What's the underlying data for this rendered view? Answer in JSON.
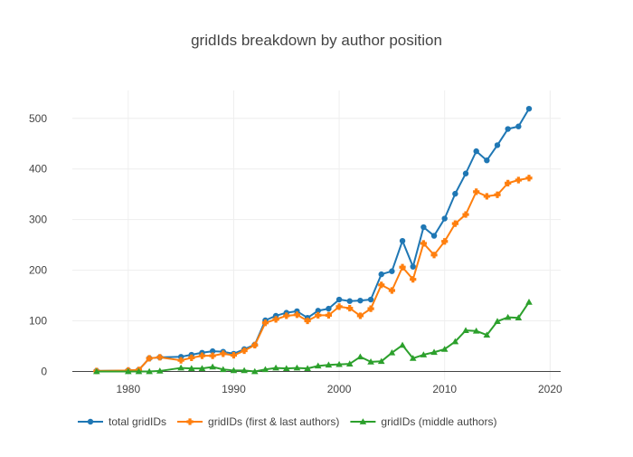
{
  "chart_data": {
    "type": "line",
    "title": "gridIds breakdown by author position",
    "xlabel": "",
    "ylabel": "",
    "xlim": [
      1974.7,
      2021
    ],
    "ylim": [
      -17,
      555
    ],
    "xticks": [
      1980,
      1990,
      2000,
      2010,
      2020
    ],
    "yticks": [
      0,
      100,
      200,
      300,
      400,
      500
    ],
    "grid": true,
    "legend_position": "bottom",
    "series": [
      {
        "name": "total gridIDs",
        "color": "#1f77b4",
        "marker": "circle",
        "x": [
          1977,
          1980,
          1981,
          1982,
          1983,
          1985,
          1986,
          1987,
          1988,
          1989,
          1990,
          1991,
          1992,
          1993,
          1994,
          1995,
          1996,
          1997,
          1998,
          1999,
          2000,
          2001,
          2002,
          2003,
          2004,
          2005,
          2006,
          2007,
          2008,
          2009,
          2010,
          2011,
          2012,
          2013,
          2014,
          2015,
          2016,
          2017,
          2018
        ],
        "y": [
          1,
          2,
          3,
          26,
          28,
          29,
          33,
          37,
          40,
          39,
          35,
          44,
          53,
          101,
          110,
          116,
          119,
          106,
          120,
          124,
          142,
          139,
          140,
          142,
          192,
          198,
          258,
          207,
          285,
          268,
          302,
          351,
          391,
          435,
          417,
          447,
          479,
          484,
          519
        ]
      },
      {
        "name": "gridIDs (first & last authors)",
        "color": "#ff7f0e",
        "marker": "cross",
        "x": [
          1977,
          1980,
          1981,
          1982,
          1983,
          1985,
          1986,
          1987,
          1988,
          1989,
          1990,
          1991,
          1992,
          1993,
          1994,
          1995,
          1996,
          1997,
          1998,
          1999,
          2000,
          2001,
          2002,
          2003,
          2004,
          2005,
          2006,
          2007,
          2008,
          2009,
          2010,
          2011,
          2012,
          2013,
          2014,
          2015,
          2016,
          2017,
          2018
        ],
        "y": [
          1,
          2,
          3,
          26,
          28,
          22,
          27,
          31,
          31,
          35,
          32,
          41,
          52,
          96,
          103,
          110,
          112,
          100,
          111,
          111,
          128,
          125,
          110,
          124,
          171,
          160,
          206,
          182,
          253,
          230,
          257,
          292,
          310,
          355,
          346,
          349,
          372,
          378,
          382
        ]
      },
      {
        "name": "gridIDs (middle authors)",
        "color": "#2ca02c",
        "marker": "triangle-up",
        "x": [
          1977,
          1980,
          1981,
          1982,
          1983,
          1985,
          1986,
          1987,
          1988,
          1989,
          1990,
          1991,
          1992,
          1993,
          1994,
          1995,
          1996,
          1997,
          1998,
          1999,
          2000,
          2001,
          2002,
          2003,
          2004,
          2005,
          2006,
          2007,
          2008,
          2009,
          2010,
          2011,
          2012,
          2013,
          2014,
          2015,
          2016,
          2017,
          2018
        ],
        "y": [
          0,
          0,
          0,
          0,
          1,
          7,
          6,
          6,
          9,
          4,
          2,
          2,
          0,
          4,
          7,
          6,
          7,
          6,
          11,
          13,
          14,
          15,
          29,
          19,
          20,
          37,
          52,
          26,
          33,
          38,
          44,
          59,
          81,
          80,
          72,
          99,
          107,
          106,
          137
        ]
      }
    ]
  }
}
